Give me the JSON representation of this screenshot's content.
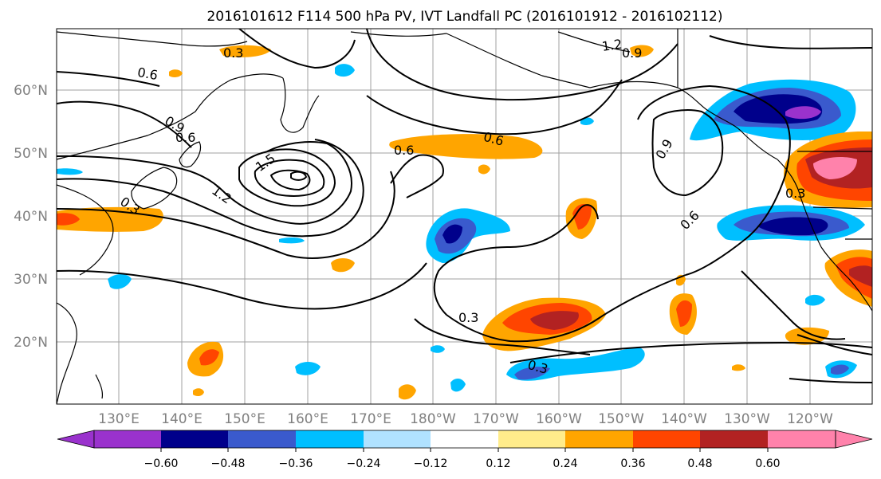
{
  "title": "2016101612 F114 500 hPa PV, IVT Landfall PC (2016101912 - 2016102112)",
  "axes": {
    "lat_labels": [
      "60°N",
      "50°N",
      "40°N",
      "30°N",
      "20°N"
    ],
    "lon_labels": [
      "130°E",
      "140°E",
      "150°E",
      "160°E",
      "170°E",
      "180°W",
      "170°W",
      "160°W",
      "150°W",
      "140°W",
      "130°W",
      "120°W"
    ]
  },
  "contour_labels": [
    "0.3",
    "0.6",
    "0.9",
    "1.2",
    "1.5",
    "0.3",
    "0.6",
    "1.2",
    "0.9",
    "0.6",
    "0.6",
    "0.9",
    "0.6",
    "0.3",
    "0.3",
    "0.3"
  ],
  "colorbar": {
    "ticks": [
      "−0.60",
      "−0.48",
      "−0.36",
      "−0.24",
      "−0.12",
      "0.12",
      "0.24",
      "0.36",
      "0.48",
      "0.60"
    ],
    "colors": [
      "#9a32cd",
      "#00008b",
      "#3a5acd",
      "#00bfff",
      "#b0e2ff",
      "#ffffff",
      "#ffec8b",
      "#ffa500",
      "#ff4500",
      "#b22222",
      "#ff82ab"
    ]
  },
  "colors": {
    "coast": "#000000",
    "grid": "#a0a0a0",
    "tick_label": "#808080"
  }
}
